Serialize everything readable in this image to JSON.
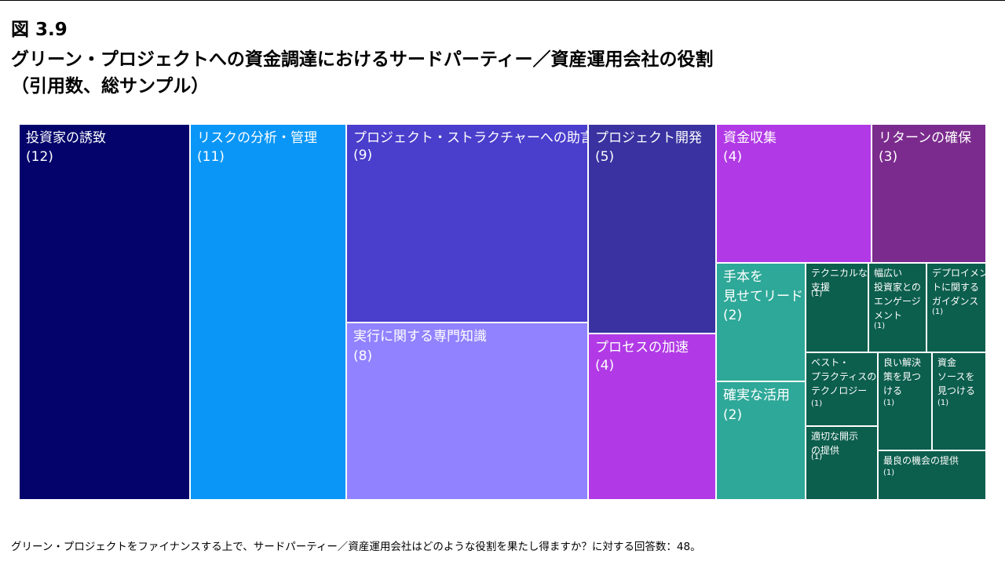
{
  "figure_number": "図 3.9",
  "title": "グリーン・プロジェクトへの資金調達におけるサードパーティー／資産運用会社の役割\n（引用数、総サンプル）",
  "footnote": "グリーン・プロジェクトをファイナンスする上で、サードパーティー／資産運用会社はどのような役割を果たし得ますか？に対する回答数：48。",
  "chart_data": {
    "type": "treemap",
    "title": "グリーン・プロジェクトへの資金調達におけるサードパーティー／資産運用会社の役割（引用数、総サンプル）",
    "items": [
      {
        "label": "投資家の誘致",
        "display": "投資家の誘致",
        "value": 12,
        "value_text": "(12)",
        "color": "#03036b"
      },
      {
        "label": "リスクの分析・管理",
        "display": "リスクの分析・管理",
        "value": 11,
        "value_text": "(11)",
        "color": "#0a96f7"
      },
      {
        "label": "プロジェクト・ストラクチャーへの助言",
        "display": "プロジェクト・ストラクチャーへの助言",
        "value": 9,
        "value_text": "(9)",
        "color": "#4a3ecc"
      },
      {
        "label": "実行に関する専門知識",
        "display": "実行に関する専門知識",
        "value": 8,
        "value_text": "(8)",
        "color": "#9182ff"
      },
      {
        "label": "プロジェクト開発",
        "display": "プロジェクト開発",
        "value": 5,
        "value_text": "(5)",
        "color": "#3932a0"
      },
      {
        "label": "プロセスの加速",
        "display": "プロセスの加速",
        "value": 4,
        "value_text": "(4)",
        "color": "#b13ae6"
      },
      {
        "label": "資金収集",
        "display": "資金収集",
        "value": 4,
        "value_text": "(4)",
        "color": "#b13ae6"
      },
      {
        "label": "リターンの確保",
        "display": "リターンの確保",
        "value": 3,
        "value_text": "(3)",
        "color": "#7b2b8d"
      },
      {
        "label": "手本を見せてリード",
        "display": "手本を\n見せてリード",
        "value": 2,
        "value_text": "(2)",
        "color": "#2ea898"
      },
      {
        "label": "確実な活用",
        "display": "確実な活用",
        "value": 2,
        "value_text": "(2)",
        "color": "#2ea898"
      },
      {
        "label": "テクニカルな支援",
        "display": "テクニカルな\n支援",
        "value": 1,
        "value_text": "(1)",
        "color": "#0c5e4d"
      },
      {
        "label": "幅広い投資家とのエンゲージメント",
        "display": "幅広い\n投資家との\nエンゲージ\nメント",
        "value": 1,
        "value_text": "(1)",
        "color": "#0c5e4d"
      },
      {
        "label": "デプロイメントに関するガイダンス",
        "display": "デプロイメン\nトに関する\nガイダンス",
        "value": 1,
        "value_text": "(1)",
        "color": "#0c5e4d"
      },
      {
        "label": "ベスト・プラクティスのテクノロジー",
        "display": "ベスト・\nプラクティスの\nテクノロジー",
        "value": 1,
        "value_text": "(1)",
        "color": "#0c5e4d"
      },
      {
        "label": "良い解決策を見つける",
        "display": "良い解決\n策を見つ\nける",
        "value": 1,
        "value_text": "(1)",
        "color": "#0c5e4d"
      },
      {
        "label": "資金ソースを見つける",
        "display": "資金\nソースを\n見つける",
        "value": 1,
        "value_text": "(1)",
        "color": "#0c5e4d"
      },
      {
        "label": "適切な開示の提供",
        "display": "適切な開示\nの提供",
        "value": 1,
        "value_text": "(1)",
        "color": "#0c5e4d"
      },
      {
        "label": "最良の機会の提供",
        "display": "最良の機会の提供",
        "value": 1,
        "value_text": "(1)",
        "color": "#0c5e4d"
      }
    ]
  }
}
